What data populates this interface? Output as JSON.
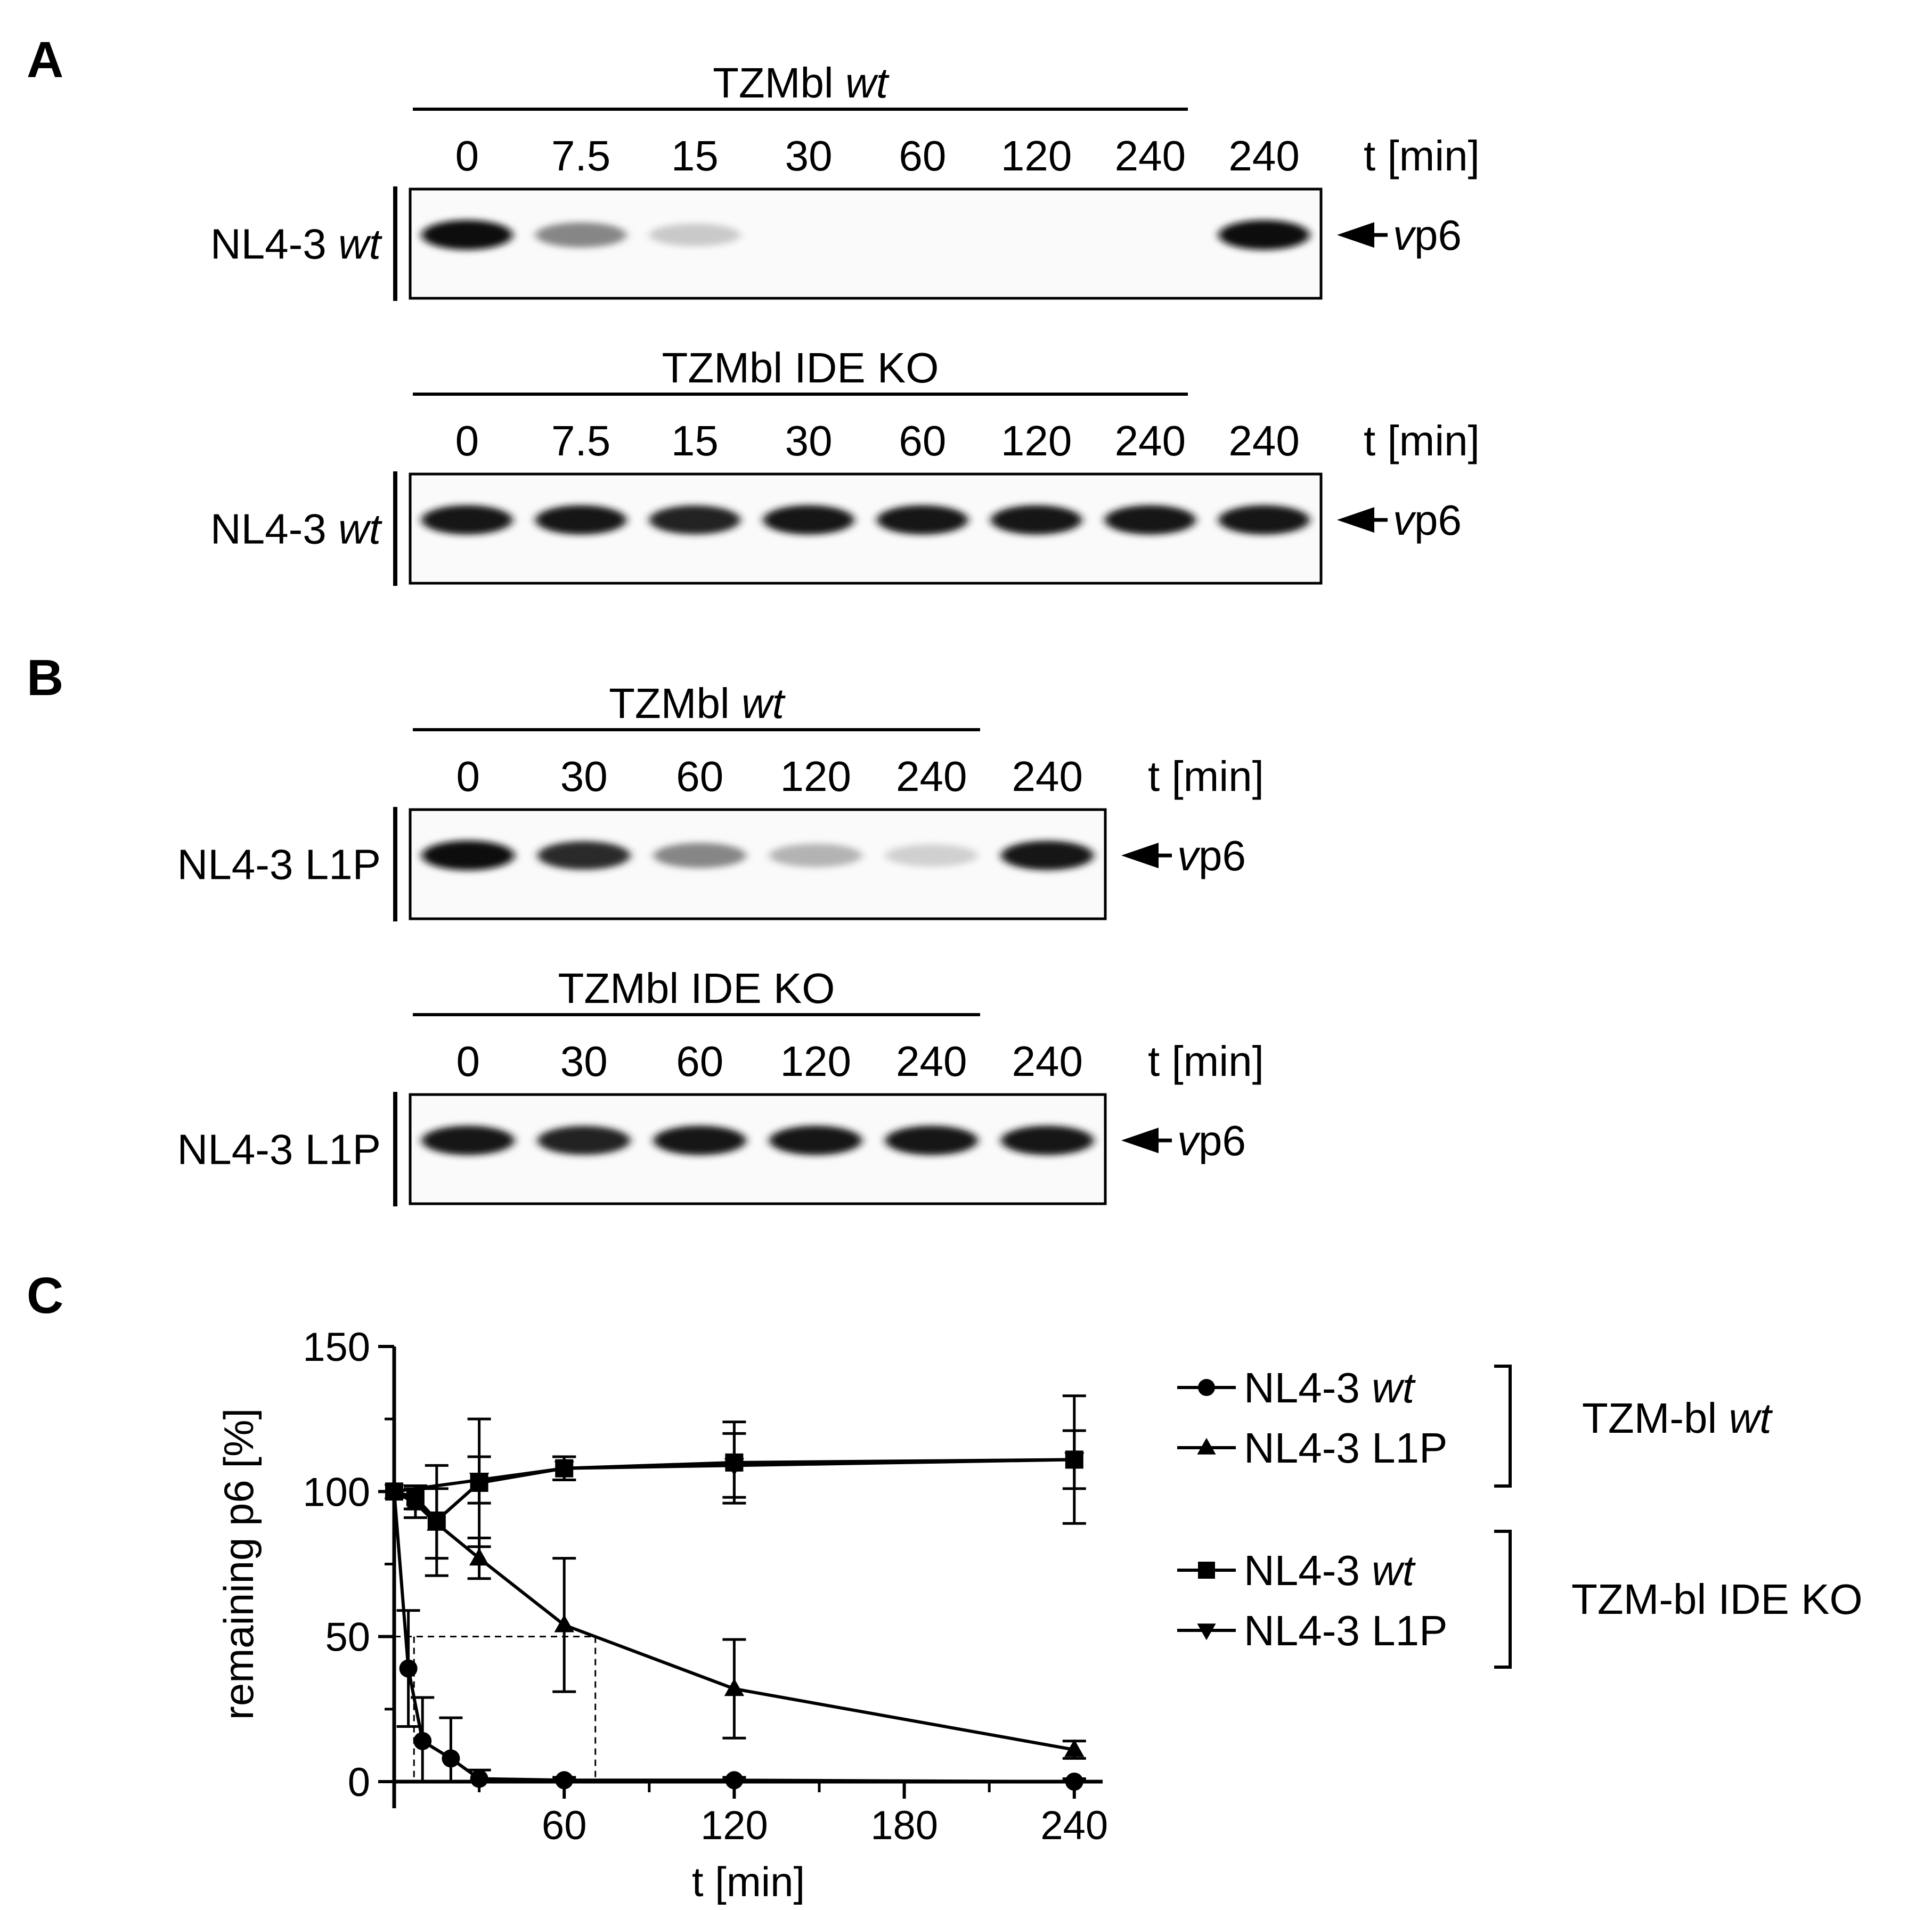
{
  "panels": {
    "a": "A",
    "b": "B",
    "c": "C"
  },
  "blots": [
    {
      "panel": "A",
      "header": {
        "pre": "TZMbl ",
        "em": "wt"
      },
      "lanes": [
        "0",
        "7.5",
        "15",
        "30",
        "60",
        "120",
        "240",
        "240"
      ],
      "unit": "t [min]",
      "row": {
        "pre": "NL4-3 ",
        "em": "wt"
      },
      "marker": {
        "em": "v",
        "post": "p6"
      },
      "band_intensity": [
        1.0,
        0.45,
        0.15,
        0,
        0,
        0,
        0,
        1.0
      ]
    },
    {
      "panel": "A",
      "header": {
        "pre": "TZMbl IDE KO",
        "em": ""
      },
      "lanes": [
        "0",
        "7.5",
        "15",
        "30",
        "60",
        "120",
        "240",
        "240"
      ],
      "unit": "t [min]",
      "row": {
        "pre": "NL4-3 ",
        "em": "wt"
      },
      "marker": {
        "em": "v",
        "post": "p6"
      },
      "band_intensity": [
        0.95,
        0.95,
        0.9,
        0.95,
        0.95,
        0.95,
        0.95,
        0.95
      ]
    },
    {
      "panel": "B",
      "header": {
        "pre": "TZMbl ",
        "em": "wt"
      },
      "lanes": [
        "0",
        "30",
        "60",
        "120",
        "240",
        "240"
      ],
      "unit": "t [min]",
      "row": {
        "pre": "NL4-3 L1P",
        "em": ""
      },
      "marker": {
        "em": "v",
        "post": "p6"
      },
      "band_intensity": [
        1.0,
        0.85,
        0.45,
        0.25,
        0.12,
        0.95
      ]
    },
    {
      "panel": "B",
      "header": {
        "pre": "TZMbl IDE KO",
        "em": ""
      },
      "lanes": [
        "0",
        "30",
        "60",
        "120",
        "240",
        "240"
      ],
      "unit": "t [min]",
      "row": {
        "pre": "NL4-3 L1P",
        "em": ""
      },
      "marker": {
        "em": "v",
        "post": "p6"
      },
      "band_intensity": [
        0.95,
        0.9,
        0.95,
        0.95,
        0.95,
        0.95
      ]
    }
  ],
  "chart_data": {
    "type": "line",
    "xlabel": "t [min]",
    "ylabel": "remaining p6 [%]",
    "xlim": [
      0,
      250
    ],
    "ylim": [
      0,
      150
    ],
    "x_ticks": [
      60,
      120,
      180,
      240
    ],
    "y_ticks": [
      0,
      50,
      100,
      150
    ],
    "half_life_guides": [
      7,
      71
    ],
    "series": [
      {
        "name": "NL4-3 wt",
        "marker": "circle",
        "group": "TZM-bl wt",
        "x": [
          0,
          5,
          10,
          20,
          30,
          60,
          120,
          240
        ],
        "y": [
          100,
          39,
          14,
          8,
          1,
          0.5,
          0.5,
          0
        ],
        "err": [
          0,
          20,
          15,
          14,
          3,
          1,
          1,
          1
        ]
      },
      {
        "name": "NL4-3 L1P",
        "marker": "triangle-up",
        "group": "TZM-bl wt",
        "x": [
          0,
          7.5,
          15,
          30,
          60,
          120,
          240
        ],
        "y": [
          100,
          96,
          89,
          77,
          54,
          32,
          11
        ],
        "err": [
          0,
          5,
          12,
          7,
          23,
          17,
          3
        ]
      },
      {
        "name": "NL4-3 wt",
        "marker": "square",
        "group": "TZM-bl IDE KO",
        "x": [
          0,
          7.5,
          15,
          30,
          60,
          120,
          240
        ],
        "y": [
          100,
          98,
          90,
          103,
          108,
          110,
          111
        ],
        "err": [
          0,
          4,
          19,
          22,
          4,
          14,
          22
        ]
      },
      {
        "name": "NL4-3 L1P",
        "marker": "triangle-down",
        "group": "TZM-bl IDE KO",
        "x": [
          0,
          30,
          60,
          120,
          240
        ],
        "y": [
          100,
          104,
          108,
          109,
          111
        ],
        "err": [
          0,
          8,
          4,
          11,
          10
        ]
      }
    ],
    "legend_groups": [
      {
        "pre": "TZM-bl ",
        "em": "wt"
      },
      {
        "pre": "TZM-bl IDE KO",
        "em": ""
      }
    ],
    "legend_entries": [
      {
        "marker": "circle",
        "pre": "NL4-3 ",
        "em": "wt"
      },
      {
        "marker": "triangle-up",
        "pre": "NL4-3 L1P",
        "em": ""
      },
      {
        "marker": "square",
        "pre": "NL4-3 ",
        "em": "wt"
      },
      {
        "marker": "triangle-down",
        "pre": "NL4-3 L1P",
        "em": ""
      }
    ],
    "legend_position": "right"
  }
}
